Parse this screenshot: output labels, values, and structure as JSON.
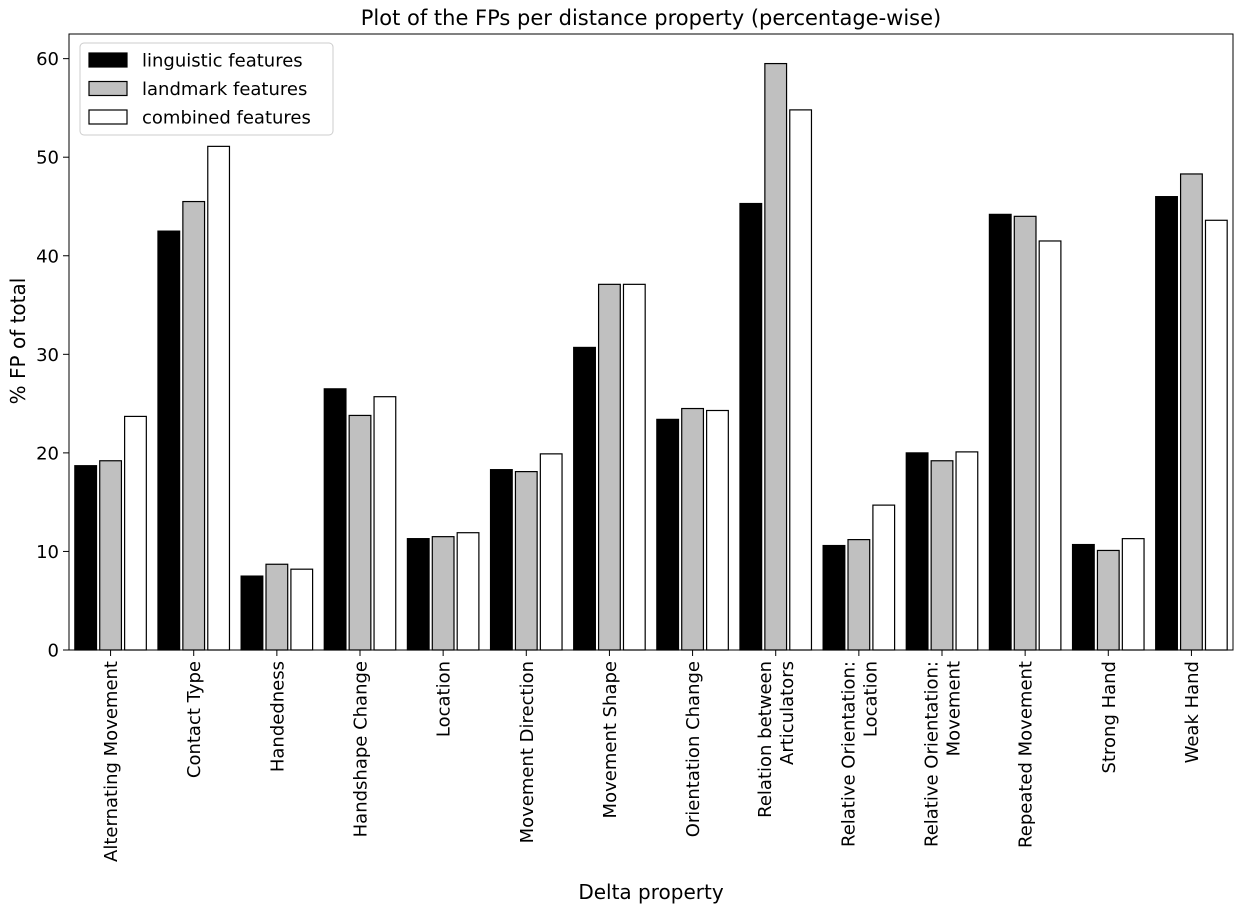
{
  "chart_data": {
    "type": "bar",
    "title": "Plot of the FPs per distance property (percentage-wise)",
    "xlabel": "Delta property",
    "ylabel": "% FP of total",
    "ylim": [
      0,
      62.5
    ],
    "yticks": [
      0,
      10,
      20,
      30,
      40,
      50,
      60
    ],
    "grid": false,
    "legend_position": "top-left",
    "categories": [
      "Alternating Movement",
      "Contact Type",
      "Handedness",
      "Handshape Change",
      "Location",
      "Movement Direction",
      "Movement Shape",
      "Orientation Change",
      "Relation between\nArticulators",
      "Relative Orientation:\nLocation",
      "Relative Orientation:\nMovement",
      "Repeated Movement",
      "Strong Hand",
      "Weak Hand"
    ],
    "series": [
      {
        "name": "linguistic features",
        "color": "#000000",
        "values": [
          18.7,
          42.5,
          7.5,
          26.5,
          11.3,
          18.3,
          30.7,
          23.4,
          45.3,
          10.6,
          20.0,
          44.2,
          10.7,
          46.0
        ]
      },
      {
        "name": "landmark features",
        "color": "#c0c0c0",
        "values": [
          19.2,
          45.5,
          8.7,
          23.8,
          11.5,
          18.1,
          37.1,
          24.5,
          59.5,
          11.2,
          19.2,
          44.0,
          10.1,
          48.3
        ]
      },
      {
        "name": "combined features",
        "color": "#ffffff",
        "values": [
          23.7,
          51.1,
          8.2,
          25.7,
          11.9,
          19.9,
          37.1,
          24.3,
          54.8,
          14.7,
          20.1,
          41.5,
          11.3,
          43.6
        ]
      }
    ]
  }
}
